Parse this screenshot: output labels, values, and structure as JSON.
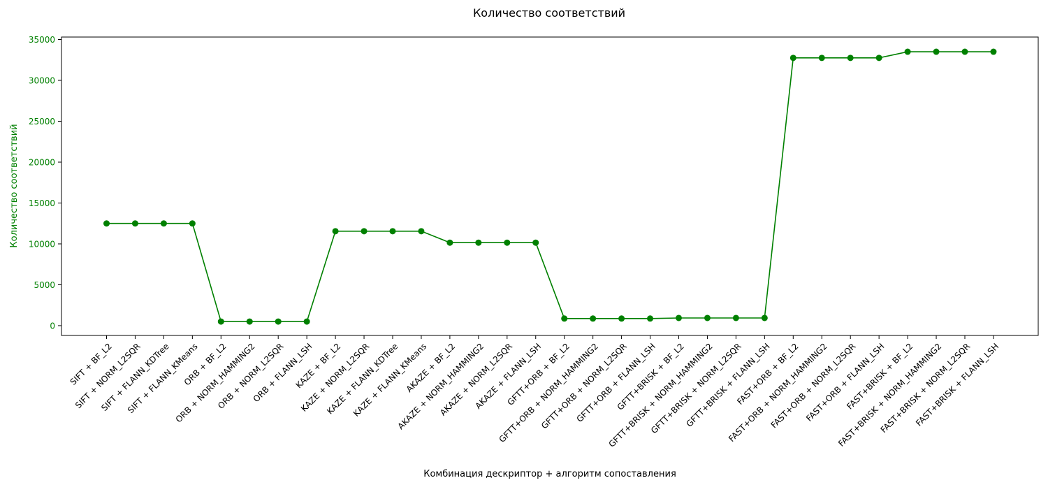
{
  "chart_data": {
    "type": "line",
    "title": "Количество соответствий",
    "xlabel": "Комбинация дескриптор + алгоритм сопоставления",
    "ylabel": "Количество соответствий",
    "categories": [
      "SIFT + BF_L2",
      "SIFT + NORM_L2SQR",
      "SIFT + FLANN_KDTree",
      "SIFT + FLANN_KMeans",
      "ORB + BF_L2",
      "ORB + NORM_HAMMING2",
      "ORB + NORM_L2SQR",
      "ORB + FLANN_LSH",
      "KAZE + BF_L2",
      "KAZE + NORM_L2SQR",
      "KAZE + FLANN_KDTree",
      "KAZE + FLANN_KMeans",
      "AKAZE + BF_L2",
      "AKAZE + NORM_HAMMING2",
      "AKAZE + NORM_L2SQR",
      "AKAZE + FLANN_LSH",
      "GFTT+ORB + BF_L2",
      "GFTT+ORB + NORM_HAMMING2",
      "GFTT+ORB + NORM_L2SQR",
      "GFTT+ORB + FLANN_LSH",
      "GFTT+BRISK + BF_L2",
      "GFTT+BRISK + NORM_HAMMING2",
      "GFTT+BRISK + NORM_L2SQR",
      "GFTT+BRISK + FLANN_LSH",
      "FAST+ORB + BF_L2",
      "FAST+ORB + NORM_HAMMING2",
      "FAST+ORB + NORM_L2SQR",
      "FAST+ORB + FLANN_LSH",
      "FAST+BRISK + BF_L2",
      "FAST+BRISK + NORM_HAMMING2",
      "FAST+BRISK + NORM_L2SQR",
      "FAST+BRISK + FLANN_LSH"
    ],
    "values": [
      12500,
      12500,
      12500,
      12500,
      500,
      500,
      500,
      500,
      11550,
      11550,
      11550,
      11550,
      10150,
      10150,
      10150,
      10150,
      870,
      870,
      870,
      870,
      940,
      940,
      940,
      940,
      32750,
      32750,
      32750,
      32750,
      33500,
      33500,
      33500,
      33500
    ],
    "ylim": [
      -1200,
      35300
    ],
    "yticks": [
      0,
      5000,
      10000,
      15000,
      20000,
      25000,
      30000,
      35000
    ],
    "grid": false,
    "legend": false,
    "color": "#008000"
  }
}
